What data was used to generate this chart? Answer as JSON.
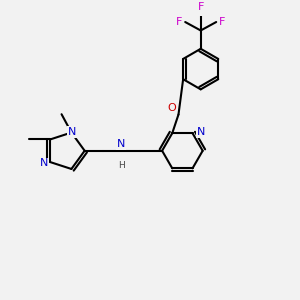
{
  "bg_color": "#f2f2f2",
  "bond_width": 1.5,
  "atom_colors": {
    "N": "#0000cc",
    "O": "#cc0000",
    "F": "#cc00cc",
    "C": "#000000",
    "H": "#444444"
  },
  "font_size": 8.0,
  "fig_size": [
    3.0,
    3.0
  ],
  "dpi": 100
}
